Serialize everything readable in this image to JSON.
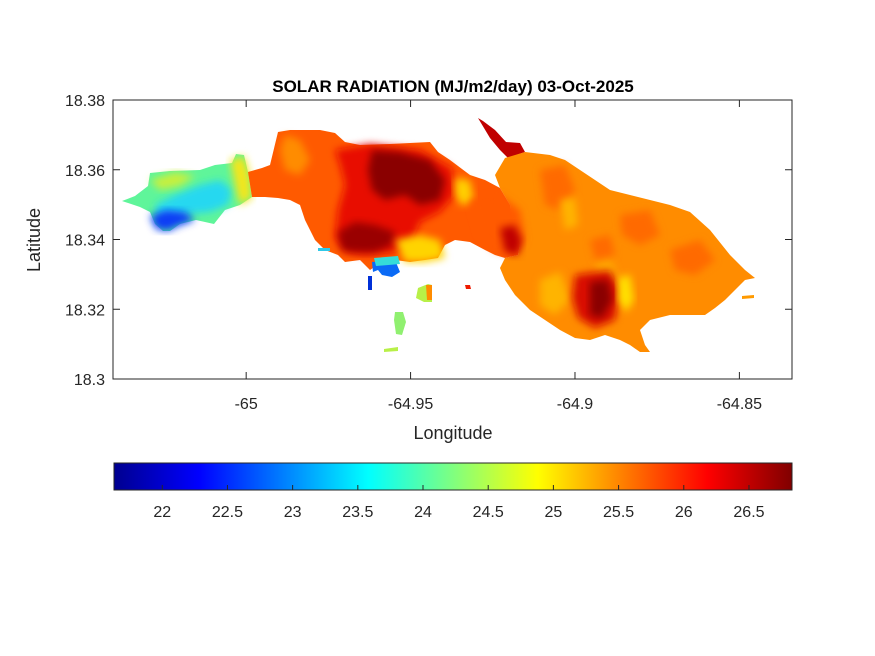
{
  "chart_data": {
    "type": "heatmap",
    "title": "SOLAR RADIATION (MJ/m2/day) 03-Oct-2025",
    "xlabel": "Longitude",
    "ylabel": "Latitude",
    "xlim": [
      -65.0405,
      -64.834
    ],
    "ylim": [
      18.3,
      18.38
    ],
    "xticks": [
      -65,
      -64.95,
      -64.9,
      -64.85
    ],
    "xtick_labels": [
      "-65",
      "-64.95",
      "-64.9",
      "-64.85"
    ],
    "yticks": [
      18.3,
      18.32,
      18.34,
      18.36,
      18.38
    ],
    "ytick_labels": [
      "18.3",
      "18.32",
      "18.34",
      "18.36",
      "18.38"
    ],
    "grid": false,
    "colormap": "jet",
    "colorbar": {
      "orientation": "horizontal",
      "location": "below",
      "clim": [
        21.63,
        26.83
      ],
      "ticks": [
        22,
        22.5,
        23,
        23.5,
        24,
        24.5,
        25,
        25.5,
        26,
        26.5
      ],
      "tick_labels": [
        "22",
        "22.5",
        "23",
        "23.5",
        "24",
        "24.5",
        "25",
        "25.5",
        "26",
        "26.5"
      ]
    },
    "regions": [
      {
        "name": "west-peninsula",
        "approx_value": 24.0
      },
      {
        "name": "west-blue-pocket",
        "approx_value": 22.4
      },
      {
        "name": "central-body",
        "approx_value": 25.9
      },
      {
        "name": "central-hotspot",
        "approx_value": 26.7
      },
      {
        "name": "south-hotspot",
        "approx_value": 26.6
      },
      {
        "name": "east-body",
        "approx_value": 25.6
      },
      {
        "name": "east-hotspot",
        "approx_value": 26.3
      },
      {
        "name": "southern-cove-blue",
        "approx_value": 22.6
      },
      {
        "name": "islet",
        "approx_value": 24.3
      }
    ]
  }
}
